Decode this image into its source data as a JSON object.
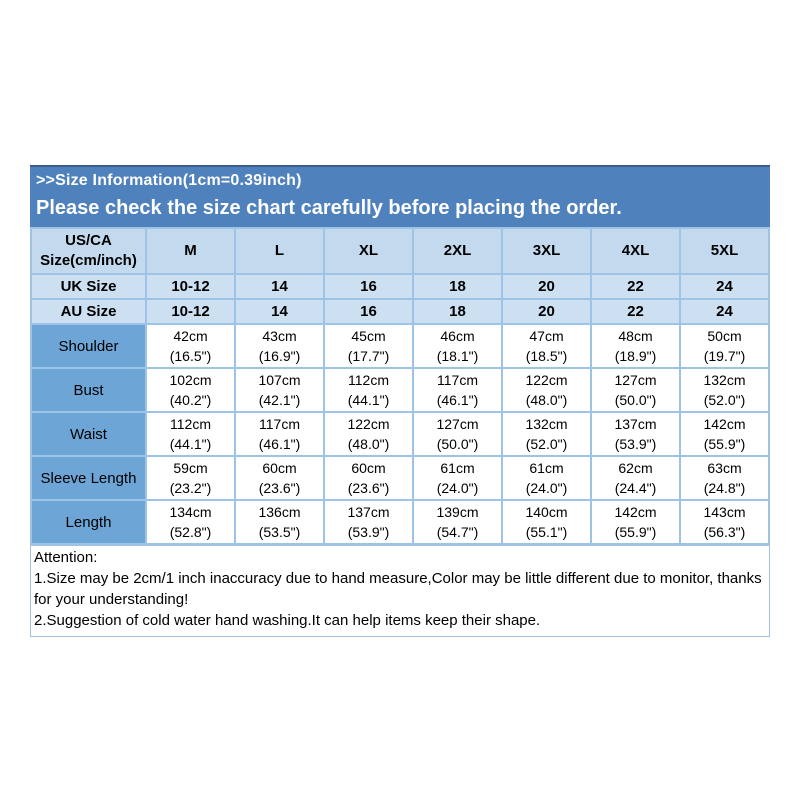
{
  "banner": {
    "title": ">>Size Information(1cm=0.39inch)",
    "subtitle": "Please check the size chart carefully before placing the order."
  },
  "table": {
    "header": [
      "US/CA Size(cm/inch)",
      "M",
      "L",
      "XL",
      "2XL",
      "3XL",
      "4XL",
      "5XL"
    ],
    "size_rows": [
      {
        "label": "UK Size",
        "values": [
          "10-12",
          "14",
          "16",
          "18",
          "20",
          "22",
          "24"
        ]
      },
      {
        "label": "AU Size",
        "values": [
          "10-12",
          "14",
          "16",
          "18",
          "20",
          "22",
          "24"
        ]
      }
    ],
    "measure_rows": [
      {
        "label": "Shoulder",
        "values": [
          [
            "42cm",
            "(16.5\")"
          ],
          [
            "43cm",
            "(16.9\")"
          ],
          [
            "45cm",
            "(17.7\")"
          ],
          [
            "46cm",
            "(18.1\")"
          ],
          [
            "47cm",
            "(18.5\")"
          ],
          [
            "48cm",
            "(18.9\")"
          ],
          [
            "50cm",
            "(19.7\")"
          ]
        ]
      },
      {
        "label": "Bust",
        "values": [
          [
            "102cm",
            "(40.2\")"
          ],
          [
            "107cm",
            "(42.1\")"
          ],
          [
            "112cm",
            "(44.1\")"
          ],
          [
            "117cm",
            "(46.1\")"
          ],
          [
            "122cm",
            "(48.0\")"
          ],
          [
            "127cm",
            "(50.0\")"
          ],
          [
            "132cm",
            "(52.0\")"
          ]
        ]
      },
      {
        "label": "Waist",
        "values": [
          [
            "112cm",
            "(44.1\")"
          ],
          [
            "117cm",
            "(46.1\")"
          ],
          [
            "122cm",
            "(48.0\")"
          ],
          [
            "127cm",
            "(50.0\")"
          ],
          [
            "132cm",
            "(52.0\")"
          ],
          [
            "137cm",
            "(53.9\")"
          ],
          [
            "142cm",
            "(55.9\")"
          ]
        ]
      },
      {
        "label": "Sleeve Length",
        "values": [
          [
            "59cm",
            "(23.2\")"
          ],
          [
            "60cm",
            "(23.6\")"
          ],
          [
            "60cm",
            "(23.6\")"
          ],
          [
            "61cm",
            "(24.0\")"
          ],
          [
            "61cm",
            "(24.0\")"
          ],
          [
            "62cm",
            "(24.4\")"
          ],
          [
            "63cm",
            "(24.8\")"
          ]
        ]
      },
      {
        "label": "Length",
        "values": [
          [
            "134cm",
            "(52.8\")"
          ],
          [
            "136cm",
            "(53.5\")"
          ],
          [
            "137cm",
            "(53.9\")"
          ],
          [
            "139cm",
            "(54.7\")"
          ],
          [
            "140cm",
            "(55.1\")"
          ],
          [
            "142cm",
            "(55.9\")"
          ],
          [
            "143cm",
            "(56.3\")"
          ]
        ]
      }
    ]
  },
  "attention": {
    "title": "Attention:",
    "note1": "1.Size may be 2cm/1 inch inaccuracy due to hand measure,Color may be little different due to monitor, thanks for your understanding!",
    "note2": "2.Suggestion of cold water hand washing.It can help items keep their shape."
  },
  "colors": {
    "banner_bg": "#4f81bd",
    "banner_top_border": "#3a5f8f",
    "banner_text": "#ffffff",
    "header_row_bg": "#c3d9ee",
    "size_row_bg": "#cce0f2",
    "label_col_bg": "#6da5d7",
    "cell_border": "#9dc3e6",
    "attention_border": "#a6c1dd",
    "text": "#000000"
  }
}
